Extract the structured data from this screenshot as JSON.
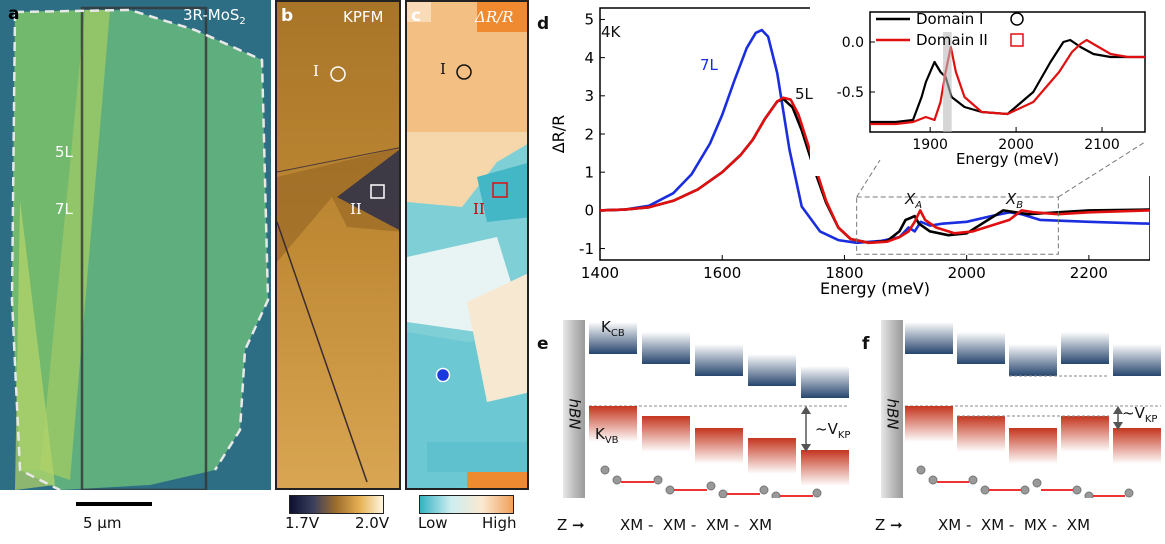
{
  "panels": {
    "a": {
      "letter": "a",
      "material": "3R-MoS",
      "material_sub": "2",
      "label_5L": "5L",
      "label_7L": "7L",
      "scalebar": "5 μm"
    },
    "b": {
      "letter": "b",
      "title": "KPFM",
      "domain_I": "I",
      "domain_II": "II",
      "cbar_min": "1.7V",
      "cbar_max": "2.0V"
    },
    "c": {
      "letter": "c",
      "title": "ΔR/R",
      "domain_I": "I",
      "domain_II": "II",
      "cbar_min": "Low",
      "cbar_max": "High"
    },
    "d": {
      "letter": "d",
      "temp": "4K",
      "label_7L": "7L",
      "label_5L": "5L",
      "xa": "X",
      "xa_sub": "A",
      "xb": "X",
      "xb_sub": "B",
      "legend": [
        "Domain I",
        "Domain II"
      ]
    },
    "e": {
      "letter": "e",
      "hbn": "hBN",
      "kcb": "K",
      "kcb_sub": "CB",
      "kvb": "K",
      "kvb_sub": "VB",
      "vkp": "~V",
      "vkp_sub": "KP",
      "axis": "Z",
      "stacking": "XM -  XM -  XM -  XM"
    },
    "f": {
      "letter": "f",
      "hbn": "hBN",
      "vkp": "~V",
      "vkp_sub": "KP",
      "axis": "Z",
      "stacking": "XM -  XM -  MX -  XM"
    }
  },
  "chart_data": [
    {
      "type": "line",
      "xlabel": "Energy (meV)",
      "ylabel": "ΔR/R",
      "xlim": [
        1400,
        2300
      ],
      "ylim": [
        -1.3,
        5.3
      ],
      "xticks": [
        1400,
        1600,
        1800,
        2000,
        2200
      ],
      "yticks": [
        -1,
        0,
        1,
        2,
        3,
        4,
        5
      ],
      "series": [
        {
          "name": "7L",
          "color": "#1a2ee0",
          "x": [
            1400,
            1440,
            1480,
            1520,
            1550,
            1580,
            1600,
            1620,
            1640,
            1655,
            1665,
            1675,
            1690,
            1710,
            1730,
            1760,
            1790,
            1820,
            1860,
            1890,
            1905,
            1915,
            1925,
            1940,
            1960,
            2000,
            2040,
            2070,
            2090,
            2120,
            2200,
            2300
          ],
          "y": [
            0.0,
            0.02,
            0.12,
            0.45,
            0.95,
            1.75,
            2.5,
            3.4,
            4.25,
            4.65,
            4.72,
            4.55,
            3.6,
            1.6,
            0.1,
            -0.55,
            -0.78,
            -0.85,
            -0.8,
            -0.7,
            -0.45,
            -0.55,
            -0.3,
            -0.4,
            -0.35,
            -0.3,
            -0.15,
            -0.05,
            -0.1,
            -0.25,
            -0.3,
            -0.35
          ]
        },
        {
          "name": "5L Domain I",
          "color": "#000000",
          "x": [
            1400,
            1440,
            1480,
            1520,
            1560,
            1600,
            1630,
            1650,
            1670,
            1690,
            1700,
            1715,
            1730,
            1750,
            1770,
            1790,
            1810,
            1840,
            1870,
            1890,
            1900,
            1908,
            1915,
            1922,
            1940,
            1970,
            2000,
            2030,
            2060,
            2080,
            2100,
            2150,
            2200,
            2300
          ],
          "y": [
            0.0,
            0.02,
            0.08,
            0.25,
            0.55,
            1.0,
            1.45,
            1.85,
            2.4,
            2.85,
            2.92,
            2.7,
            2.1,
            1.1,
            0.2,
            -0.45,
            -0.75,
            -0.85,
            -0.8,
            -0.55,
            -0.25,
            -0.2,
            -0.15,
            -0.35,
            -0.55,
            -0.65,
            -0.6,
            -0.3,
            0.0,
            -0.05,
            -0.1,
            -0.05,
            0.0,
            0.02
          ]
        },
        {
          "name": "5L Domain II",
          "color": "#e01010",
          "x": [
            1400,
            1440,
            1480,
            1520,
            1560,
            1600,
            1630,
            1650,
            1670,
            1690,
            1700,
            1712,
            1725,
            1745,
            1770,
            1790,
            1810,
            1840,
            1870,
            1890,
            1905,
            1915,
            1924,
            1932,
            1950,
            1980,
            2010,
            2040,
            2070,
            2090,
            2110,
            2150,
            2200,
            2300
          ],
          "y": [
            0.0,
            0.02,
            0.08,
            0.25,
            0.55,
            1.0,
            1.45,
            1.85,
            2.4,
            2.85,
            2.95,
            2.9,
            2.5,
            1.5,
            0.25,
            -0.45,
            -0.75,
            -0.85,
            -0.82,
            -0.7,
            -0.55,
            -0.3,
            0.0,
            -0.25,
            -0.45,
            -0.6,
            -0.55,
            -0.4,
            -0.25,
            0.0,
            -0.05,
            -0.1,
            -0.05,
            0.0
          ]
        }
      ]
    },
    {
      "type": "line",
      "xlabel": "Energy (meV)",
      "xlim": [
        1830,
        2150
      ],
      "ylim": [
        -0.9,
        0.3
      ],
      "xticks": [
        1900,
        2000,
        2100
      ],
      "yticks": [
        0.0,
        -0.5
      ],
      "legend_position": "top-left",
      "series": [
        {
          "name": "Domain I",
          "color": "#000000",
          "x": [
            1830,
            1860,
            1880,
            1890,
            1895,
            1900,
            1905,
            1912,
            1918,
            1925,
            1940,
            1960,
            1990,
            2020,
            2040,
            2055,
            2063,
            2075,
            2090,
            2110,
            2130,
            2150
          ],
          "y": [
            -0.8,
            -0.8,
            -0.78,
            -0.55,
            -0.4,
            -0.3,
            -0.2,
            -0.3,
            -0.35,
            -0.55,
            -0.65,
            -0.7,
            -0.72,
            -0.5,
            -0.2,
            0.0,
            0.02,
            -0.05,
            -0.12,
            -0.15,
            -0.15,
            -0.15
          ]
        },
        {
          "name": "Domain II",
          "color": "#e01010",
          "x": [
            1830,
            1860,
            1880,
            1895,
            1905,
            1912,
            1918,
            1924,
            1930,
            1940,
            1960,
            1990,
            2020,
            2050,
            2065,
            2075,
            2082,
            2090,
            2110,
            2130,
            2150
          ],
          "y": [
            -0.82,
            -0.82,
            -0.8,
            -0.75,
            -0.78,
            -0.6,
            -0.3,
            -0.05,
            -0.3,
            -0.55,
            -0.7,
            -0.72,
            -0.6,
            -0.3,
            -0.1,
            -0.02,
            0.02,
            -0.02,
            -0.12,
            -0.15,
            -0.15
          ]
        }
      ]
    }
  ]
}
